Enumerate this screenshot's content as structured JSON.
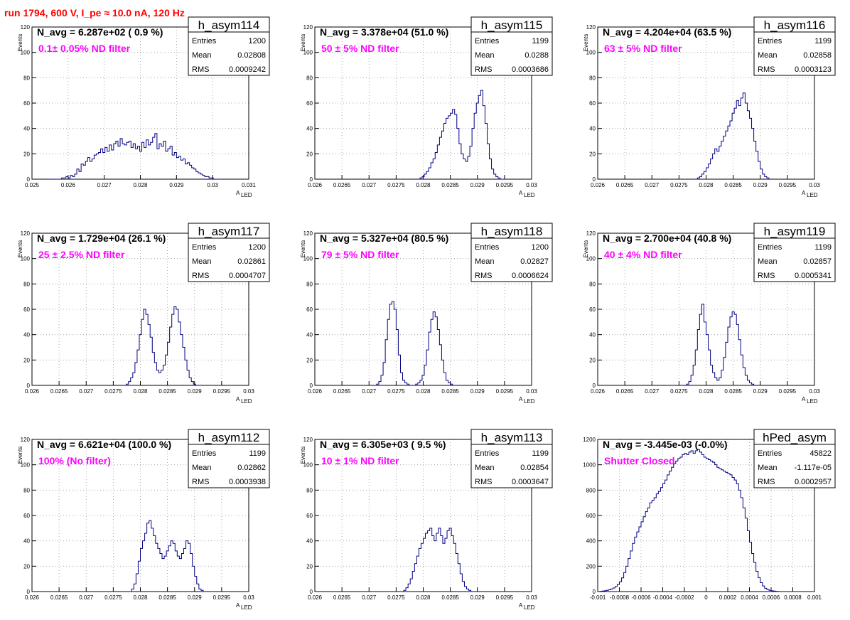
{
  "title": "run 1794,   600 V, I_pe ≈ 10.0 nA, 120 Hz",
  "colors": {
    "title": "#ff0000",
    "filter_text": "#ff00ff",
    "histogram": "#000080",
    "grid": "#999999"
  },
  "chart_data": [
    {
      "type": "histogram",
      "name": "h_asym114",
      "n_avg": "N_avg = 6.287e+02 ( 0.9 %)",
      "filter": "0.1± 0.05% ND filter",
      "stats": [
        [
          "Entries",
          "1200"
        ],
        [
          "Mean",
          "0.02808"
        ],
        [
          "RMS",
          "0.0009242"
        ]
      ],
      "xlim": [
        0.025,
        0.031
      ],
      "ylim": [
        0,
        120
      ],
      "xticks": [
        0.025,
        0.026,
        0.027,
        0.028,
        0.029,
        0.03,
        0.031
      ],
      "xtick_labels": [
        "0.025",
        "0.026",
        "0.027",
        "0.028",
        "0.029",
        "0.03",
        "0.031"
      ],
      "yticks": [
        0,
        20,
        40,
        60,
        80,
        100,
        120
      ],
      "xlabel": "A",
      "xlabel_sub": "LED",
      "ylabel": "Events",
      "bin_start": 0.0254,
      "bin_width": 6e-05,
      "counts": [
        0,
        0,
        0,
        0,
        0,
        0,
        0,
        1,
        1,
        2,
        1,
        3,
        2,
        4,
        8,
        6,
        12,
        11,
        14,
        17,
        14,
        16,
        19,
        20,
        21,
        24,
        21,
        25,
        22,
        27,
        23,
        28,
        30,
        26,
        32,
        28,
        27,
        29,
        30,
        25,
        28,
        24,
        26,
        22,
        29,
        25,
        31,
        27,
        29,
        33,
        36,
        24,
        28,
        26,
        30,
        22,
        24,
        26,
        19,
        21,
        17,
        18,
        15,
        16,
        12,
        13,
        11,
        9,
        8,
        6,
        5,
        4,
        3,
        2,
        2,
        1,
        1,
        0,
        0,
        0,
        0
      ]
    },
    {
      "type": "histogram",
      "name": "h_asym115",
      "n_avg": "N_avg = 3.378e+04 (51.0 %)",
      "filter": "50 ± 5% ND filter",
      "stats": [
        [
          "Entries",
          "1199"
        ],
        [
          "Mean",
          "0.0288"
        ],
        [
          "RMS",
          "0.0003686"
        ]
      ],
      "xlim": [
        0.026,
        0.03
      ],
      "ylim": [
        0,
        120
      ],
      "xticks": [
        0.026,
        0.0265,
        0.027,
        0.0275,
        0.028,
        0.0285,
        0.029,
        0.0295,
        0.03
      ],
      "xtick_labels": [
        "0.026",
        "0.0265",
        "0.027",
        "0.0275",
        "0.028",
        "0.0285",
        "0.029",
        "0.0295",
        "0.03"
      ],
      "yticks": [
        0,
        20,
        40,
        60,
        80,
        100,
        120
      ],
      "xlabel": "A",
      "xlabel_sub": "LED",
      "ylabel": "Events",
      "bin_start": 0.0279,
      "bin_width": 4e-05,
      "counts": [
        0,
        1,
        2,
        4,
        6,
        9,
        13,
        16,
        21,
        27,
        33,
        38,
        44,
        48,
        50,
        52,
        55,
        51,
        40,
        28,
        20,
        16,
        14,
        18,
        26,
        40,
        52,
        60,
        66,
        70,
        58,
        44,
        28,
        16,
        8,
        4,
        2,
        1,
        0,
        0
      ]
    },
    {
      "type": "histogram",
      "name": "h_asym116",
      "n_avg": "N_avg = 4.204e+04 (63.5 %)",
      "filter": "63 ± 5% ND filter",
      "stats": [
        [
          "Entries",
          "1199"
        ],
        [
          "Mean",
          "0.02858"
        ],
        [
          "RMS",
          "0.0003123"
        ]
      ],
      "xlim": [
        0.026,
        0.03
      ],
      "ylim": [
        0,
        120
      ],
      "xticks": [
        0.026,
        0.0265,
        0.027,
        0.0275,
        0.028,
        0.0285,
        0.029,
        0.0295,
        0.03
      ],
      "xtick_labels": [
        "0.026",
        "0.0265",
        "0.027",
        "0.0275",
        "0.028",
        "0.0285",
        "0.029",
        "0.0295",
        "0.03"
      ],
      "yticks": [
        0,
        20,
        40,
        60,
        80,
        100,
        120
      ],
      "xlabel": "A",
      "xlabel_sub": "LED",
      "ylabel": "Events",
      "bin_start": 0.0278,
      "bin_width": 4e-05,
      "counts": [
        0,
        1,
        2,
        4,
        6,
        9,
        12,
        16,
        20,
        24,
        22,
        26,
        30,
        34,
        38,
        42,
        46,
        52,
        56,
        62,
        58,
        64,
        68,
        60,
        54,
        48,
        40,
        30,
        22,
        14,
        8,
        4,
        2,
        1,
        0
      ]
    },
    {
      "type": "histogram",
      "name": "h_asym117",
      "n_avg": "N_avg = 1.729e+04 (26.1 %)",
      "filter": "25 ± 2.5% ND filter",
      "stats": [
        [
          "Entries",
          "1200"
        ],
        [
          "Mean",
          "0.02861"
        ],
        [
          "RMS",
          "0.0004707"
        ]
      ],
      "xlim": [
        0.026,
        0.03
      ],
      "ylim": [
        0,
        120
      ],
      "xticks": [
        0.026,
        0.0265,
        0.027,
        0.0275,
        0.028,
        0.0285,
        0.029,
        0.0295,
        0.03
      ],
      "xtick_labels": [
        "0.026",
        "0.0265",
        "0.027",
        "0.0275",
        "0.028",
        "0.0285",
        "0.029",
        "0.0295",
        "0.03"
      ],
      "yticks": [
        0,
        20,
        40,
        60,
        80,
        100,
        120
      ],
      "xlabel": "A",
      "xlabel_sub": "LED",
      "ylabel": "Events",
      "bin_start": 0.0277,
      "bin_width": 4e-05,
      "counts": [
        0,
        1,
        3,
        6,
        10,
        18,
        28,
        40,
        52,
        60,
        56,
        48,
        38,
        26,
        18,
        12,
        10,
        12,
        16,
        24,
        34,
        46,
        56,
        62,
        60,
        50,
        40,
        30,
        20,
        12,
        6,
        3,
        1,
        0
      ]
    },
    {
      "type": "histogram",
      "name": "h_asym118",
      "n_avg": "N_avg = 5.327e+04 (80.5 %)",
      "filter": "79 ± 5% ND filter",
      "stats": [
        [
          "Entries",
          "1200"
        ],
        [
          "Mean",
          "0.02827"
        ],
        [
          "RMS",
          "0.0006624"
        ]
      ],
      "xlim": [
        0.026,
        0.03
      ],
      "ylim": [
        0,
        120
      ],
      "xticks": [
        0.026,
        0.0265,
        0.027,
        0.0275,
        0.028,
        0.0285,
        0.029,
        0.0295,
        0.03
      ],
      "xtick_labels": [
        "0.026",
        "0.0265",
        "0.027",
        "0.0275",
        "0.028",
        "0.0285",
        "0.029",
        "0.0295",
        "0.03"
      ],
      "yticks": [
        0,
        20,
        40,
        60,
        80,
        100,
        120
      ],
      "xlabel": "A",
      "xlabel_sub": "LED",
      "ylabel": "Events",
      "bin_start": 0.0271,
      "bin_width": 4e-05,
      "counts": [
        0,
        1,
        3,
        8,
        18,
        36,
        52,
        64,
        66,
        60,
        44,
        24,
        10,
        4,
        2,
        1,
        0,
        0,
        0,
        1,
        2,
        4,
        8,
        16,
        28,
        42,
        52,
        58,
        54,
        44,
        32,
        20,
        10,
        4,
        2,
        1,
        0
      ]
    },
    {
      "type": "histogram",
      "name": "h_asym119",
      "n_avg": "N_avg = 2.700e+04 (40.8 %)",
      "filter": "40 ± 4% ND filter",
      "stats": [
        [
          "Entries",
          "1199"
        ],
        [
          "Mean",
          "0.02857"
        ],
        [
          "RMS",
          "0.0005341"
        ]
      ],
      "xlim": [
        0.026,
        0.03
      ],
      "ylim": [
        0,
        120
      ],
      "xticks": [
        0.026,
        0.0265,
        0.027,
        0.0275,
        0.028,
        0.0285,
        0.029,
        0.0295,
        0.03
      ],
      "xtick_labels": [
        "0.026",
        "0.0265",
        "0.027",
        "0.0275",
        "0.028",
        "0.0285",
        "0.029",
        "0.0295",
        "0.03"
      ],
      "yticks": [
        0,
        20,
        40,
        60,
        80,
        100,
        120
      ],
      "xlabel": "A",
      "xlabel_sub": "LED",
      "ylabel": "Events",
      "bin_start": 0.0276,
      "bin_width": 4e-05,
      "counts": [
        0,
        1,
        3,
        8,
        16,
        28,
        44,
        56,
        64,
        50,
        40,
        28,
        16,
        10,
        6,
        4,
        6,
        12,
        22,
        34,
        46,
        54,
        58,
        56,
        48,
        36,
        24,
        14,
        8,
        4,
        2,
        1,
        0
      ]
    },
    {
      "type": "histogram",
      "name": "h_asym112",
      "n_avg": "N_avg = 6.621e+04 (100.0 %)",
      "filter": "100% (No filter)",
      "stats": [
        [
          "Entries",
          "1199"
        ],
        [
          "Mean",
          "0.02862"
        ],
        [
          "RMS",
          "0.0003938"
        ]
      ],
      "xlim": [
        0.026,
        0.03
      ],
      "ylim": [
        0,
        120
      ],
      "xticks": [
        0.026,
        0.0265,
        0.027,
        0.0275,
        0.028,
        0.0285,
        0.029,
        0.0295,
        0.03
      ],
      "xtick_labels": [
        "0.026",
        "0.0265",
        "0.027",
        "0.0275",
        "0.028",
        "0.0285",
        "0.029",
        "0.0295",
        "0.03"
      ],
      "yticks": [
        0,
        20,
        40,
        60,
        80,
        100,
        120
      ],
      "xlabel": "A",
      "xlabel_sub": "LED",
      "ylabel": "Events",
      "bin_start": 0.0278,
      "bin_width": 4e-05,
      "counts": [
        0,
        2,
        6,
        14,
        24,
        34,
        40,
        46,
        54,
        56,
        50,
        44,
        38,
        34,
        30,
        26,
        28,
        32,
        36,
        40,
        38,
        32,
        28,
        26,
        30,
        34,
        40,
        38,
        30,
        20,
        12,
        6,
        2,
        1,
        0
      ]
    },
    {
      "type": "histogram",
      "name": "h_asym113",
      "n_avg": "N_avg = 6.305e+03 ( 9.5 %)",
      "filter": "10 ± 1% ND filter",
      "stats": [
        [
          "Entries",
          "1199"
        ],
        [
          "Mean",
          "0.02854"
        ],
        [
          "RMS",
          "0.0003647"
        ]
      ],
      "xlim": [
        0.026,
        0.03
      ],
      "ylim": [
        0,
        120
      ],
      "xticks": [
        0.026,
        0.0265,
        0.027,
        0.0275,
        0.028,
        0.0285,
        0.029,
        0.0295,
        0.03
      ],
      "xtick_labels": [
        "0.026",
        "0.0265",
        "0.027",
        "0.0275",
        "0.028",
        "0.0285",
        "0.029",
        "0.0295",
        "0.03"
      ],
      "yticks": [
        0,
        20,
        40,
        60,
        80,
        100,
        120
      ],
      "xlabel": "A",
      "xlabel_sub": "LED",
      "ylabel": "Events",
      "bin_start": 0.0276,
      "bin_width": 4e-05,
      "counts": [
        0,
        1,
        3,
        6,
        10,
        16,
        22,
        28,
        34,
        38,
        42,
        46,
        48,
        50,
        44,
        40,
        46,
        50,
        44,
        38,
        42,
        48,
        50,
        44,
        38,
        30,
        22,
        14,
        8,
        4,
        2,
        1,
        0
      ]
    },
    {
      "type": "histogram",
      "name": "hPed_asym",
      "n_avg": "N_avg = -3.445e-03 (-0.0%)",
      "filter": "Shutter Closed",
      "stats": [
        [
          "Entries",
          "45822"
        ],
        [
          "Mean",
          "-1.117e-05"
        ],
        [
          "RMS",
          "0.0002957"
        ]
      ],
      "xlim": [
        -0.001,
        0.001
      ],
      "ylim": [
        0,
        1200
      ],
      "xticks": [
        -0.001,
        -0.0008,
        -0.0006,
        -0.0004,
        -0.0002,
        0,
        0.0002,
        0.0004,
        0.0006,
        0.0008,
        0.001
      ],
      "xtick_labels": [
        "-0.001",
        "-0.0008",
        "-0.0006",
        "-0.0004",
        "-0.0002",
        "0",
        "0.0002",
        "0.0004",
        "0.0006",
        "0.0008",
        "0.001"
      ],
      "yticks": [
        0,
        200,
        400,
        600,
        800,
        1000,
        1200
      ],
      "xlabel": "",
      "xlabel_sub": "",
      "ylabel": "",
      "bin_start": -0.001,
      "bin_width": 2e-05,
      "counts": [
        0,
        2,
        4,
        6,
        10,
        14,
        20,
        28,
        40,
        56,
        78,
        108,
        150,
        200,
        260,
        320,
        380,
        430,
        470,
        510,
        550,
        590,
        630,
        660,
        700,
        720,
        740,
        770,
        790,
        820,
        850,
        880,
        920,
        950,
        980,
        1010,
        1030,
        1050,
        1060,
        1080,
        1090,
        1080,
        1100,
        1110,
        1090,
        1110,
        1120,
        1100,
        1080,
        1060,
        1050,
        1040,
        1030,
        1020,
        1000,
        980,
        970,
        960,
        950,
        940,
        930,
        920,
        900,
        880,
        850,
        800,
        740,
        660,
        580,
        480,
        390,
        300,
        230,
        160,
        110,
        70,
        44,
        26,
        16,
        10,
        6,
        4,
        2,
        1,
        0,
        0,
        0,
        0,
        0,
        0,
        0,
        0,
        0,
        0,
        0,
        0,
        0,
        0,
        0,
        0
      ]
    }
  ]
}
